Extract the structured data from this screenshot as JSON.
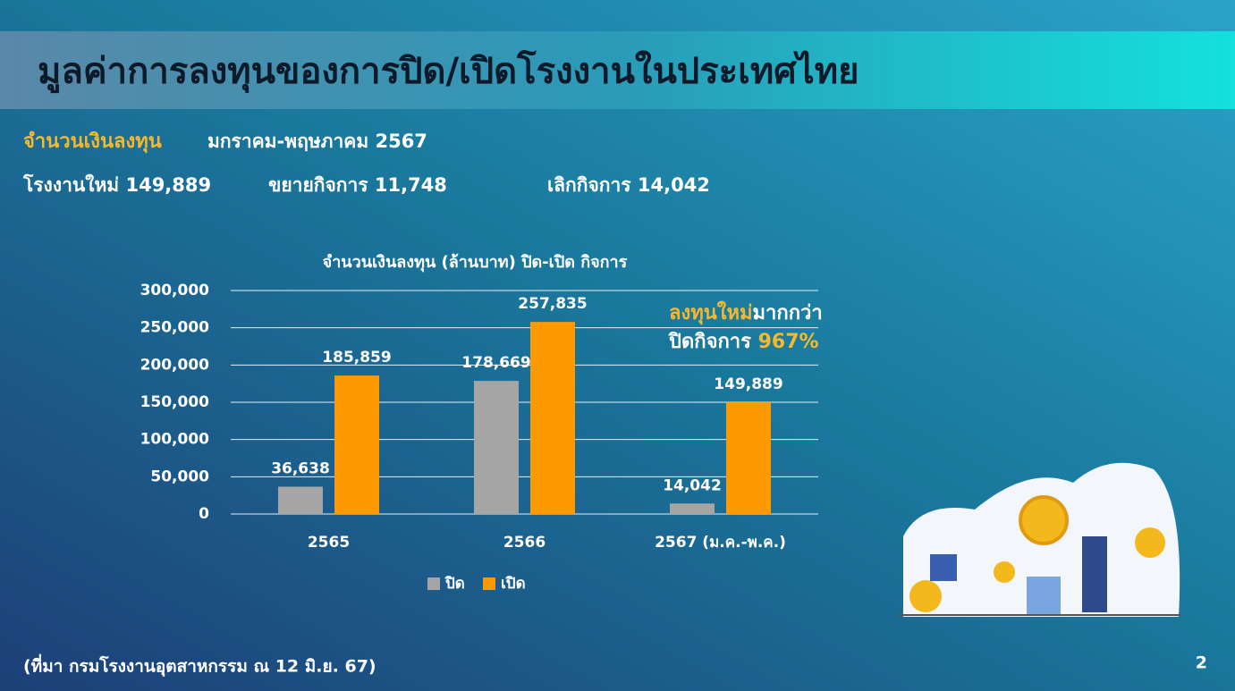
{
  "header": {
    "title": "มูลค่าการลงทุนของการปิด/เปิดโรงงานในประเทศไทย"
  },
  "summary": {
    "label": "จำนวนเงินลงทุน",
    "period": "มกราคม-พฤษภาคม 2567",
    "items": [
      "โรงงานใหม่ 149,889",
      "ขยายกิจการ 11,748",
      "เลิกกิจการ  14,042"
    ]
  },
  "chart_data": {
    "type": "bar",
    "title": "จำนวนเงินลงทุน (ล้านบาท) ปิด-เปิด กิจการ",
    "categories": [
      "2565",
      "2566",
      "2567 (ม.ค.-พ.ค.)"
    ],
    "series": [
      {
        "name": "ปิด",
        "color": "#a5a5a5",
        "values": [
          36638,
          178669,
          14042
        ],
        "value_labels": [
          "36,638",
          "178,669",
          "14,042"
        ]
      },
      {
        "name": "เปิด",
        "color": "#ff9900",
        "values": [
          185859,
          257835,
          149889
        ],
        "value_labels": [
          "185,859",
          "257,835",
          "149,889"
        ]
      }
    ],
    "ylim": [
      0,
      300000
    ],
    "yticks": [
      0,
      {
        "value": 50000,
        "label": "50,000"
      },
      {
        "value": 100000,
        "label": "100,000"
      },
      {
        "value": 150000,
        "label": "150,000"
      },
      {
        "value": 200000,
        "label": "200,000"
      },
      {
        "value": 250000,
        "label": "250,000"
      },
      {
        "value": 300000,
        "label": "300,000"
      }
    ],
    "grid": true,
    "legend": "bottom"
  },
  "annotation": {
    "highlight": "ลงทุนใหม่",
    "text": "มากกว่า",
    "line2": "ปิดกิจการ",
    "percent": "967%"
  },
  "footer": {
    "source": "(ที่มา กรมโรงงานอุตสาหกรรม ณ 12 มิ.ย. 67)",
    "page": "2"
  }
}
